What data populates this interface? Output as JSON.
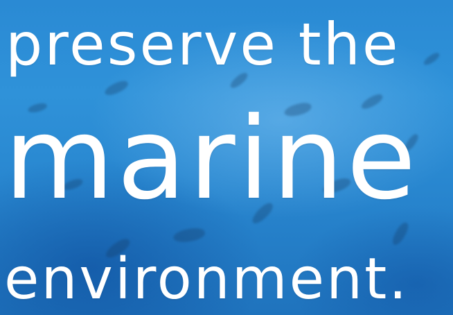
{
  "headline": {
    "line1": "preserve the",
    "line2": "marine",
    "line3": "environment."
  },
  "colors": {
    "water_light": "#2f92d9",
    "water_deep": "#1f73bd",
    "text": "#ffffff"
  }
}
